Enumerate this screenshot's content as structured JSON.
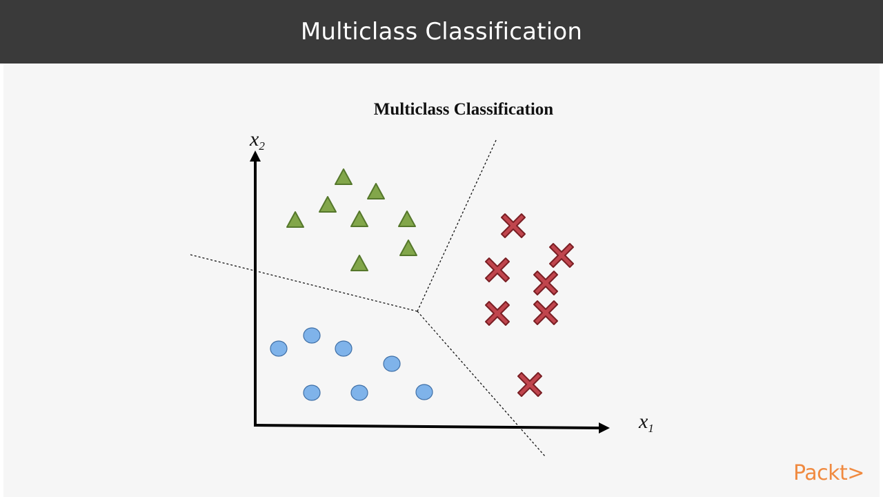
{
  "header": {
    "title": "Multiclass Classification"
  },
  "diagram": {
    "title": "Multiclass Classification",
    "x_axis": {
      "label": "x",
      "subscript": "1"
    },
    "y_axis": {
      "label": "x",
      "subscript": "2"
    },
    "classes": [
      {
        "name": "triangle",
        "shape": "triangle",
        "color": "#82a64a",
        "stroke": "#55772b"
      },
      {
        "name": "cross",
        "shape": "cross",
        "color": "#c0454d",
        "stroke": "#7a1f24"
      },
      {
        "name": "circle",
        "shape": "circle",
        "color": "#7fb3ea",
        "stroke": "#3f6fa6"
      }
    ]
  },
  "logo": {
    "text": "Packt>"
  }
}
